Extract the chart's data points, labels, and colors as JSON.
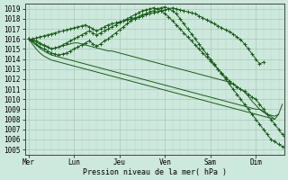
{
  "xlabel": "Pression niveau de la mer( hPa )",
  "ylim": [
    1004.5,
    1019.5
  ],
  "yticks": [
    1005,
    1006,
    1007,
    1008,
    1009,
    1010,
    1011,
    1012,
    1013,
    1014,
    1015,
    1016,
    1017,
    1018,
    1019
  ],
  "xtick_labels": [
    "Mer",
    "Lun",
    "Jeu",
    "Ven",
    "Sam",
    "Dim"
  ],
  "xtick_positions": [
    0,
    24,
    48,
    72,
    96,
    120
  ],
  "xlim": [
    -2,
    135
  ],
  "background_color": "#cde8dc",
  "grid_major_color": "#a8c8b8",
  "grid_minor_color": "#b8d8c8",
  "line_color": "#1a5c1a",
  "figsize": [
    3.2,
    2.0
  ],
  "dpi": 100,
  "lines": [
    {
      "x": [
        0,
        2,
        4,
        6,
        8,
        10,
        12,
        14,
        16,
        18,
        20,
        22,
        24,
        26,
        28,
        30,
        32,
        34,
        36,
        38,
        40,
        42,
        44,
        46,
        48,
        50,
        52,
        54,
        56,
        58,
        60,
        62,
        64,
        66,
        68,
        70,
        72,
        74,
        76,
        78,
        80,
        82,
        84,
        86,
        88,
        90,
        92,
        94,
        96,
        98,
        100,
        102,
        104,
        106,
        108,
        110,
        112,
        114,
        116,
        118,
        120,
        122,
        124,
        126,
        128,
        130,
        132,
        134
      ],
      "y": [
        1016.0,
        1015.9,
        1015.7,
        1015.5,
        1015.3,
        1015.2,
        1015.0,
        1015.1,
        1015.2,
        1015.3,
        1015.4,
        1015.5,
        1015.6,
        1015.6,
        1015.5,
        1015.4,
        1015.3,
        1015.2,
        1015.1,
        1015.0,
        1014.9,
        1014.8,
        1014.8,
        1014.7,
        1014.6,
        1014.5,
        1014.4,
        1014.3,
        1014.2,
        1014.1,
        1014.0,
        1013.9,
        1013.8,
        1013.7,
        1013.6,
        1013.5,
        1013.4,
        1013.3,
        1013.2,
        1013.1,
        1013.0,
        1012.9,
        1012.8,
        1012.7,
        1012.6,
        1012.5,
        1012.4,
        1012.3,
        1012.2,
        1012.1,
        1012.0,
        1011.9,
        1011.8,
        1011.7,
        1011.5,
        1011.3,
        1011.0,
        1010.7,
        1010.3,
        1009.8,
        1009.4,
        1009.0,
        1008.7,
        1008.5,
        1008.4,
        1008.3,
        1008.5,
        1009.5
      ],
      "has_markers": false,
      "lw": 0.7
    },
    {
      "x": [
        0,
        2,
        4,
        6,
        8,
        10,
        12,
        14,
        16,
        18,
        20,
        22,
        24,
        26,
        28,
        30,
        32,
        34,
        36,
        38,
        40,
        42,
        44,
        46,
        48,
        50,
        52,
        54,
        56,
        58,
        60,
        62,
        64,
        66,
        68,
        70,
        72,
        74,
        76,
        78,
        80,
        82,
        84,
        86,
        88,
        90,
        92,
        94,
        96,
        98,
        100,
        102,
        104,
        106,
        108,
        110,
        112,
        114,
        116,
        118,
        120,
        122,
        124,
        126,
        128,
        130,
        132
      ],
      "y": [
        1016.0,
        1015.7,
        1015.4,
        1015.1,
        1014.8,
        1014.6,
        1014.4,
        1014.3,
        1014.2,
        1014.1,
        1014.0,
        1013.9,
        1013.8,
        1013.7,
        1013.6,
        1013.5,
        1013.4,
        1013.3,
        1013.2,
        1013.1,
        1013.0,
        1012.9,
        1012.8,
        1012.7,
        1012.6,
        1012.5,
        1012.4,
        1012.3,
        1012.2,
        1012.1,
        1012.0,
        1011.9,
        1011.8,
        1011.7,
        1011.6,
        1011.5,
        1011.4,
        1011.3,
        1011.2,
        1011.1,
        1011.0,
        1010.9,
        1010.8,
        1010.7,
        1010.6,
        1010.5,
        1010.4,
        1010.3,
        1010.2,
        1010.1,
        1010.0,
        1009.9,
        1009.8,
        1009.7,
        1009.6,
        1009.5,
        1009.4,
        1009.3,
        1009.2,
        1009.1,
        1009.0,
        1009.0,
        1008.8,
        1008.5,
        1008.3,
        1008.0,
        1008.5
      ],
      "has_markers": false,
      "lw": 0.7
    },
    {
      "x": [
        0,
        2,
        4,
        6,
        8,
        10,
        12,
        14,
        16,
        18,
        20,
        22,
        24,
        26,
        28,
        30,
        32,
        34,
        36,
        38,
        40,
        42,
        44,
        46,
        48,
        50,
        52,
        54,
        56,
        58,
        60,
        62,
        64,
        66,
        68,
        70,
        72,
        74,
        76,
        78,
        80,
        82,
        84,
        86,
        88,
        90,
        92,
        94,
        96,
        98,
        100,
        102,
        104,
        106,
        108,
        110,
        112,
        114,
        116,
        118,
        120,
        122,
        124,
        126,
        128,
        130
      ],
      "y": [
        1016.0,
        1015.5,
        1015.0,
        1014.6,
        1014.3,
        1014.1,
        1013.9,
        1013.8,
        1013.7,
        1013.6,
        1013.5,
        1013.4,
        1013.3,
        1013.2,
        1013.1,
        1013.0,
        1012.9,
        1012.8,
        1012.7,
        1012.6,
        1012.5,
        1012.4,
        1012.3,
        1012.2,
        1012.1,
        1012.0,
        1011.9,
        1011.8,
        1011.7,
        1011.6,
        1011.5,
        1011.4,
        1011.3,
        1011.2,
        1011.1,
        1011.0,
        1010.9,
        1010.8,
        1010.7,
        1010.6,
        1010.5,
        1010.4,
        1010.3,
        1010.2,
        1010.1,
        1010.0,
        1009.9,
        1009.8,
        1009.7,
        1009.6,
        1009.5,
        1009.4,
        1009.3,
        1009.2,
        1009.1,
        1009.0,
        1008.9,
        1008.8,
        1008.7,
        1008.6,
        1008.5,
        1008.4,
        1008.3,
        1008.2,
        1008.1,
        1008.0
      ],
      "has_markers": false,
      "lw": 0.7
    },
    {
      "x": [
        0,
        2,
        4,
        6,
        8,
        10,
        12,
        14,
        16,
        18,
        20,
        22,
        24,
        26,
        28,
        30,
        32,
        34,
        36,
        38,
        40,
        42,
        44,
        46,
        48,
        50,
        52,
        54,
        56,
        58,
        60,
        62,
        64,
        66,
        68,
        70,
        72,
        74,
        76,
        78,
        80,
        82,
        84,
        86,
        88,
        90,
        92,
        94,
        96,
        98,
        100,
        102,
        104,
        106,
        108,
        110,
        112,
        114,
        116,
        118,
        120,
        122,
        124
      ],
      "y": [
        1016.0,
        1016.0,
        1016.1,
        1016.2,
        1016.3,
        1016.4,
        1016.5,
        1016.6,
        1016.7,
        1016.8,
        1016.9,
        1017.0,
        1017.1,
        1017.2,
        1017.3,
        1017.4,
        1017.2,
        1017.0,
        1016.8,
        1017.0,
        1017.2,
        1017.4,
        1017.5,
        1017.6,
        1017.7,
        1017.8,
        1017.9,
        1018.0,
        1018.1,
        1018.2,
        1018.3,
        1018.4,
        1018.5,
        1018.6,
        1018.7,
        1018.8,
        1018.9,
        1019.0,
        1019.1,
        1019.0,
        1018.9,
        1018.8,
        1018.7,
        1018.6,
        1018.5,
        1018.3,
        1018.1,
        1017.9,
        1017.7,
        1017.5,
        1017.3,
        1017.1,
        1016.9,
        1016.7,
        1016.5,
        1016.2,
        1015.9,
        1015.5,
        1015.0,
        1014.5,
        1014.0,
        1013.5,
        1013.7
      ],
      "has_markers": true,
      "lw": 0.7
    },
    {
      "x": [
        0,
        2,
        4,
        6,
        8,
        10,
        12,
        14,
        16,
        18,
        20,
        22,
        24,
        26,
        28,
        30,
        32,
        34,
        36,
        38,
        40,
        42,
        44,
        46,
        48,
        50,
        52,
        54,
        56,
        58,
        60,
        62,
        64,
        66,
        68,
        70,
        72,
        74,
        76,
        78,
        80,
        82,
        84,
        86,
        88,
        90,
        92,
        94,
        96,
        98,
        100,
        102,
        104,
        106,
        108,
        110,
        112,
        114,
        116,
        118,
        120,
        122,
        124,
        126,
        128,
        130,
        132,
        134,
        136
      ],
      "y": [
        1016.0,
        1015.9,
        1015.8,
        1015.6,
        1015.4,
        1015.2,
        1015.0,
        1015.1,
        1015.2,
        1015.4,
        1015.6,
        1015.8,
        1016.0,
        1016.2,
        1016.4,
        1016.6,
        1016.8,
        1016.6,
        1016.4,
        1016.6,
        1016.8,
        1017.0,
        1017.2,
        1017.4,
        1017.6,
        1017.8,
        1018.0,
        1018.2,
        1018.4,
        1018.6,
        1018.8,
        1018.9,
        1019.0,
        1019.1,
        1019.0,
        1018.8,
        1018.5,
        1018.2,
        1017.8,
        1017.4,
        1017.0,
        1016.6,
        1016.2,
        1015.8,
        1015.4,
        1015.0,
        1014.6,
        1014.2,
        1013.8,
        1013.4,
        1013.0,
        1012.6,
        1012.2,
        1011.8,
        1011.5,
        1011.2,
        1011.0,
        1010.8,
        1010.5,
        1010.2,
        1010.0,
        1009.5,
        1009.0,
        1008.5,
        1008.0,
        1007.5,
        1007.0,
        1006.5,
        1006.0
      ],
      "has_markers": true,
      "lw": 0.7
    },
    {
      "x": [
        0,
        2,
        4,
        6,
        8,
        10,
        12,
        14,
        16,
        18,
        20,
        22,
        24,
        26,
        28,
        30,
        32,
        34,
        36,
        38,
        40,
        42,
        44,
        46,
        48,
        50,
        52,
        54,
        56,
        58,
        60,
        62,
        64,
        66,
        68,
        70,
        72,
        74,
        76,
        78,
        80,
        82,
        84,
        86,
        88,
        90,
        92,
        94,
        96,
        98,
        100,
        102,
        104,
        106,
        108,
        110,
        112,
        114,
        116,
        118,
        120,
        122,
        124,
        126,
        128,
        130,
        132,
        134,
        136,
        138,
        140,
        142,
        144
      ],
      "y": [
        1016.0,
        1015.8,
        1015.5,
        1015.2,
        1015.0,
        1014.8,
        1014.6,
        1014.5,
        1014.4,
        1014.5,
        1014.6,
        1014.8,
        1015.0,
        1015.2,
        1015.4,
        1015.6,
        1015.8,
        1015.5,
        1015.3,
        1015.5,
        1015.8,
        1016.0,
        1016.3,
        1016.6,
        1016.9,
        1017.2,
        1017.5,
        1017.8,
        1018.0,
        1018.2,
        1018.4,
        1018.5,
        1018.7,
        1018.8,
        1019.0,
        1019.1,
        1019.2,
        1019.0,
        1018.8,
        1018.5,
        1018.0,
        1017.5,
        1017.0,
        1016.5,
        1016.0,
        1015.5,
        1015.0,
        1014.5,
        1014.0,
        1013.5,
        1013.0,
        1012.5,
        1012.0,
        1011.5,
        1011.0,
        1010.5,
        1010.0,
        1009.5,
        1009.0,
        1008.5,
        1008.0,
        1007.5,
        1007.0,
        1006.5,
        1006.0,
        1005.8,
        1005.5,
        1005.3,
        1005.2,
        1005.0,
        1005.3,
        1005.8,
        1006.5
      ],
      "has_markers": true,
      "lw": 0.7
    }
  ]
}
